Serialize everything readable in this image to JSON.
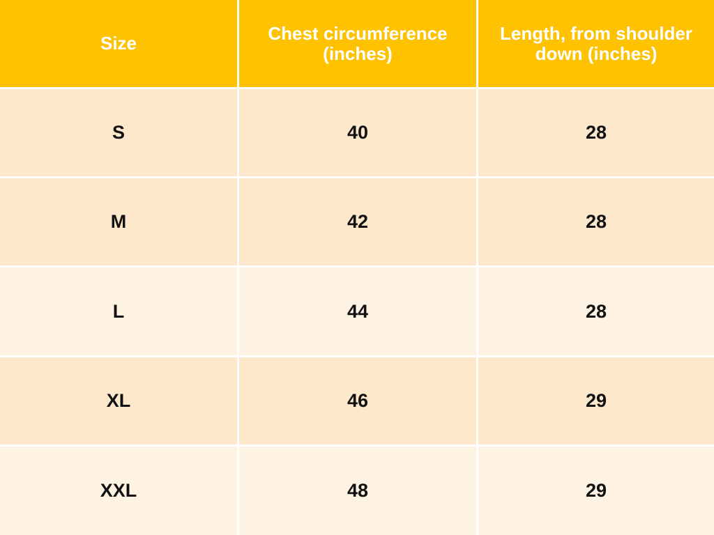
{
  "colors": {
    "header": "#fec200",
    "row_dark": "#fde8cc",
    "row_light": "#fef3e3"
  },
  "table": {
    "headers": [
      "Size",
      "Chest circumference (inches)",
      "Length, from shoulder down (inches)"
    ],
    "rows": [
      {
        "size": "S",
        "chest": "40",
        "length": "28",
        "shade": "dark"
      },
      {
        "size": "M",
        "chest": "42",
        "length": "28",
        "shade": "dark"
      },
      {
        "size": "L",
        "chest": "44",
        "length": "28",
        "shade": "light"
      },
      {
        "size": "XL",
        "chest": "46",
        "length": "29",
        "shade": "dark"
      },
      {
        "size": "XXL",
        "chest": "48",
        "length": "29",
        "shade": "light"
      }
    ]
  }
}
